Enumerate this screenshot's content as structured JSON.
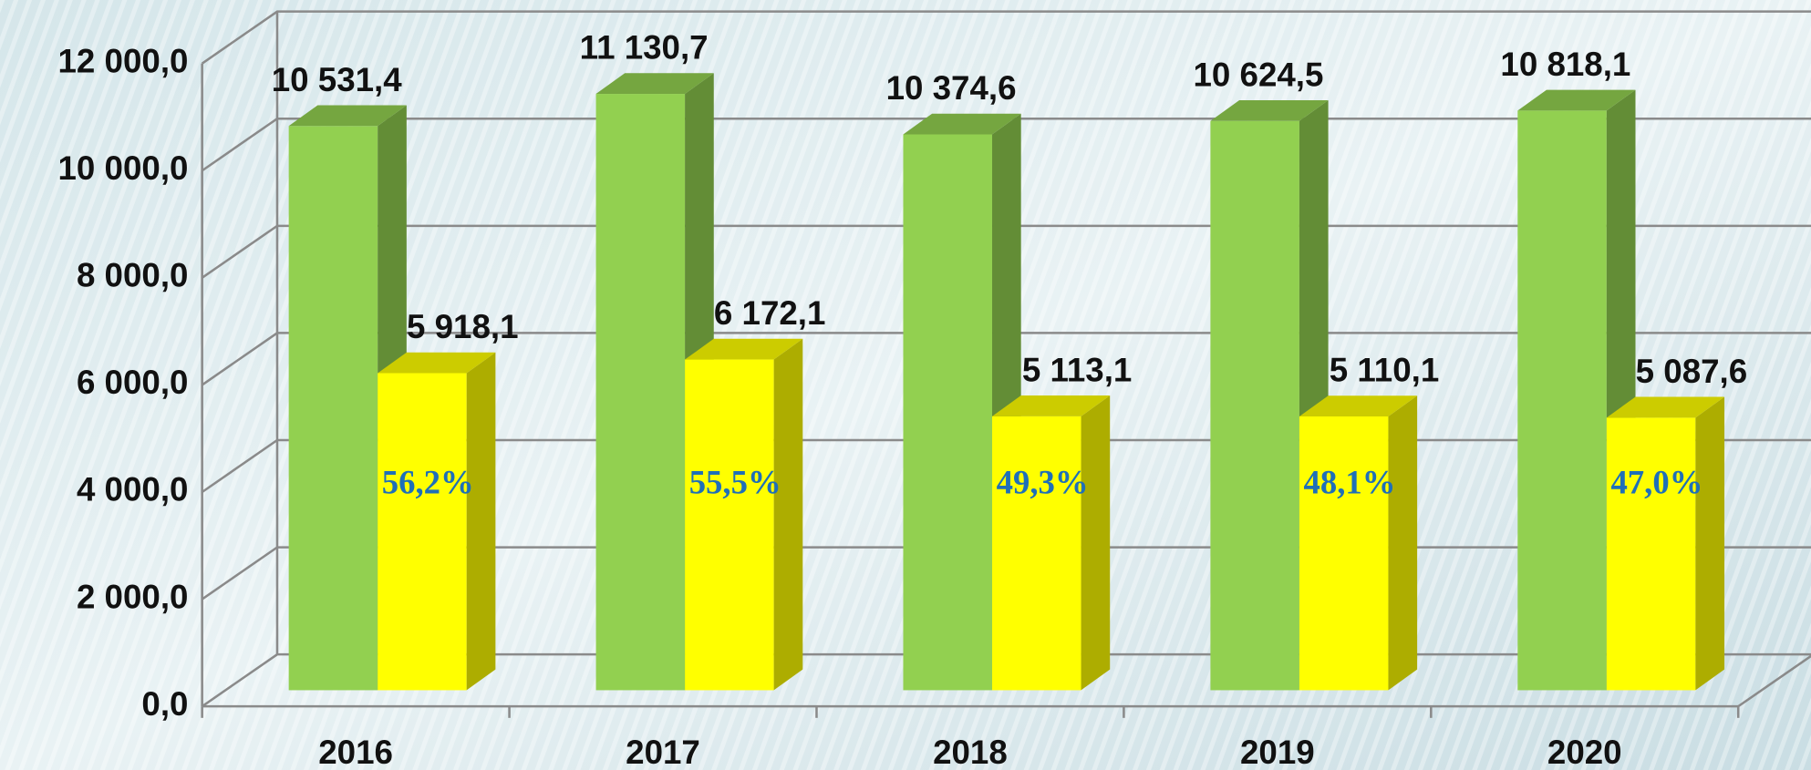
{
  "chart_data": {
    "type": "bar3d",
    "categories": [
      "2016",
      "2017",
      "2018",
      "2019",
      "2020"
    ],
    "series": [
      {
        "color": "#92d050",
        "values": [
          10531.4,
          11130.7,
          10374.6,
          10624.5,
          10818.1
        ],
        "value_labels": [
          "10 531,4",
          "11 130,7",
          "10 374,6",
          "10 624,5",
          "10 818,1"
        ]
      },
      {
        "color": "#ffff00",
        "values": [
          5918.1,
          6172.1,
          5113.1,
          5110.1,
          5087.6
        ],
        "value_labels": [
          "5 918,1",
          "6 172,1",
          "5 113,1",
          "5 110,1",
          "5 087,6"
        ],
        "annotations": [
          "56,2%",
          "55,5%",
          "49,3%",
          "48,1%",
          "47,0%"
        ]
      }
    ],
    "ylim": [
      0,
      12000
    ],
    "yticks": [
      {
        "value": 0,
        "label": "0,0"
      },
      {
        "value": 2000,
        "label": "2 000,0"
      },
      {
        "value": 4000,
        "label": "4 000,0"
      },
      {
        "value": 6000,
        "label": "6 000,0"
      },
      {
        "value": 8000,
        "label": "8 000,0"
      },
      {
        "value": 10000,
        "label": "10 000,0"
      },
      {
        "value": 12000,
        "label": "12 000,0"
      }
    ],
    "grid": true
  }
}
